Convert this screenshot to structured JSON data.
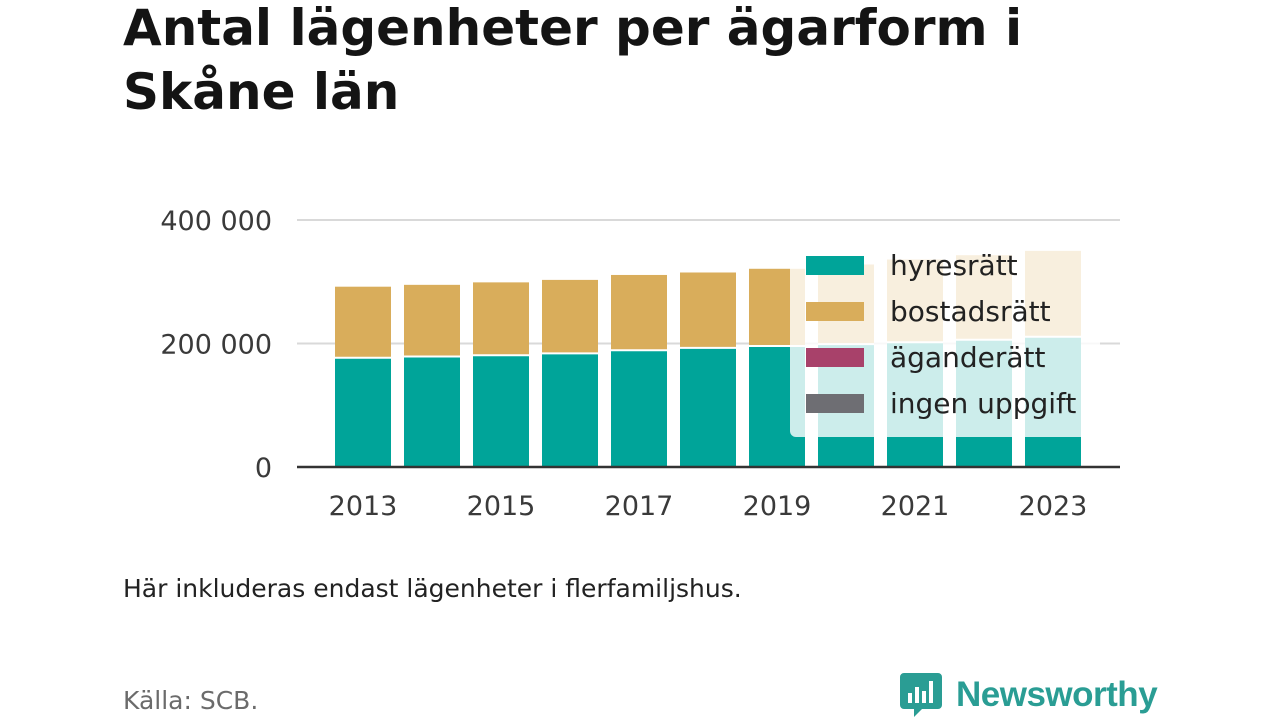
{
  "title": "Antal lägenheter per ägarform i Skåne län",
  "note": "Här inkluderas endast lägenheter i flerfamiljshus.",
  "source": "Källa: SCB.",
  "brand": {
    "name": "Newsworthy",
    "color": "#2a9d94"
  },
  "chart_data": {
    "type": "bar",
    "stacked": true,
    "categories": [
      "2013",
      "2014",
      "2015",
      "2016",
      "2017",
      "2018",
      "2019",
      "2020",
      "2021",
      "2022",
      "2023"
    ],
    "series": [
      {
        "name": "hyresrätt",
        "color": "#00a499",
        "values": [
          177000,
          179000,
          181000,
          184000,
          189000,
          193000,
          196000,
          199000,
          202000,
          206000,
          211000
        ]
      },
      {
        "name": "bostadsrätt",
        "color": "#d9ad5b",
        "values": [
          115000,
          116000,
          118000,
          119000,
          122000,
          122000,
          125000,
          129000,
          134000,
          137000,
          139000
        ]
      },
      {
        "name": "äganderätt",
        "color": "#a8416a",
        "values": [
          0,
          0,
          0,
          0,
          0,
          0,
          0,
          0,
          0,
          0,
          0
        ]
      },
      {
        "name": "ingen uppgift",
        "color": "#6e6e73",
        "values": [
          0,
          0,
          0,
          0,
          0,
          0,
          0,
          0,
          0,
          0,
          0
        ]
      }
    ],
    "ylim": [
      0,
      400000
    ],
    "yticks": [
      0,
      200000,
      400000
    ],
    "ytick_labels": [
      "0",
      "200 000",
      "400 000"
    ],
    "xtick_labels": [
      "2013",
      "2015",
      "2017",
      "2019",
      "2021",
      "2023"
    ],
    "xlabel": "",
    "ylabel": "",
    "grid": true,
    "legend_position": "top-right"
  }
}
